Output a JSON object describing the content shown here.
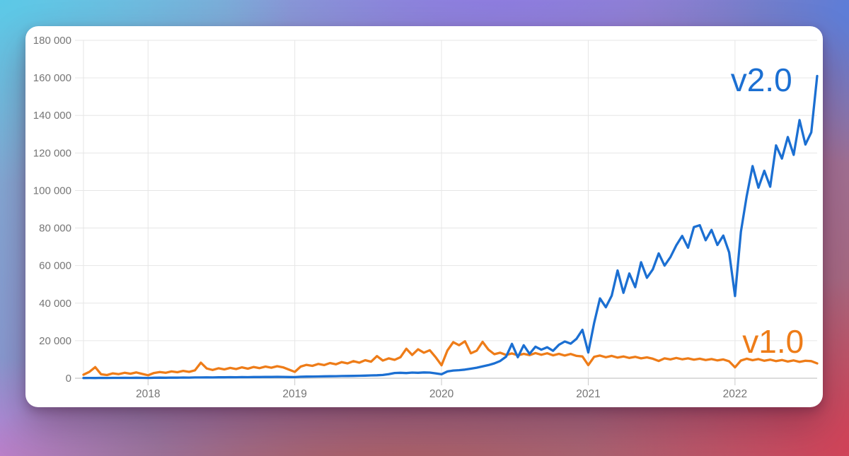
{
  "background": {
    "style": "colorful-gradient",
    "colors": [
      "#5acae8",
      "#8f76e4",
      "#527ee0",
      "#d63e56",
      "#b25246",
      "#d07cd6"
    ]
  },
  "card": {
    "background": "#ffffff"
  },
  "chart_data": {
    "type": "line",
    "title": "",
    "xlabel": "",
    "ylabel": "",
    "grid": true,
    "legend_position": "inline-annotations",
    "xlim": [
      2017.56,
      2022.56
    ],
    "ylim": [
      0,
      180000
    ],
    "x_ticks": [
      2018,
      2019,
      2020,
      2021,
      2022
    ],
    "x_tick_labels": [
      "2018",
      "2019",
      "2020",
      "2021",
      "2022"
    ],
    "y_ticks": [
      0,
      20000,
      40000,
      60000,
      80000,
      100000,
      120000,
      140000,
      160000,
      180000
    ],
    "y_tick_labels": [
      "0",
      "20 000",
      "40 000",
      "60 000",
      "80 000",
      "100 000",
      "120 000",
      "140 000",
      "160 000",
      "180 000"
    ],
    "grid_color": "#e6e6e6",
    "axis_line_color": "#b9b9b9",
    "tick_color": "#c9c9c9",
    "x_start": 2017.56,
    "x_step": 0.04,
    "series": [
      {
        "name": "v1.0",
        "color": "#ee7c18",
        "label_at": {
          "x": 2022.26,
          "y": 19500
        },
        "values": [
          1900,
          3400,
          5900,
          2100,
          1700,
          2600,
          2200,
          2900,
          2400,
          3100,
          2300,
          1600,
          2800,
          3300,
          2900,
          3600,
          3200,
          3900,
          3400,
          4200,
          8300,
          5200,
          4400,
          5300,
          4700,
          5500,
          4900,
          5800,
          5100,
          6000,
          5400,
          6200,
          5600,
          6400,
          5800,
          4600,
          3400,
          6200,
          7100,
          6600,
          7600,
          7000,
          8100,
          7400,
          8600,
          7900,
          9100,
          8300,
          9600,
          8800,
          11800,
          9400,
          10600,
          9800,
          11200,
          15700,
          12400,
          15400,
          13600,
          14900,
          11200,
          6900,
          14800,
          19200,
          17600,
          19700,
          13300,
          14700,
          19400,
          15200,
          12800,
          13600,
          12400,
          13200,
          12200,
          13000,
          12300,
          13400,
          12500,
          13300,
          12200,
          13000,
          12100,
          12900,
          11900,
          11600,
          7000,
          11400,
          12100,
          11200,
          11900,
          11000,
          11600,
          10800,
          11400,
          10600,
          11100,
          10400,
          9200,
          10600,
          10000,
          10800,
          10100,
          10600,
          9900,
          10400,
          9700,
          10200,
          9500,
          10000,
          9000,
          5800,
          9400,
          10400,
          9600,
          10200,
          9300,
          9900,
          9100,
          9700,
          8900,
          9500,
          8700,
          9300,
          9100,
          7900
        ]
      },
      {
        "name": "v2.0",
        "color": "#1b6fd2",
        "label_at": {
          "x": 2022.18,
          "y": 159000
        },
        "values": [
          100,
          150,
          120,
          180,
          150,
          200,
          180,
          220,
          200,
          250,
          180,
          150,
          250,
          300,
          280,
          350,
          320,
          380,
          350,
          420,
          400,
          450,
          430,
          500,
          480,
          550,
          520,
          600,
          580,
          650,
          630,
          700,
          680,
          750,
          720,
          650,
          600,
          800,
          850,
          900,
          950,
          1000,
          1050,
          1100,
          1150,
          1200,
          1250,
          1300,
          1400,
          1500,
          1600,
          1750,
          2200,
          2800,
          2900,
          2750,
          3000,
          2900,
          3100,
          3000,
          2600,
          2100,
          3600,
          4100,
          4300,
          4600,
          5100,
          5600,
          6300,
          7000,
          7900,
          9200,
          11500,
          18300,
          11200,
          17600,
          13000,
          16800,
          15200,
          16500,
          14600,
          17800,
          19600,
          18400,
          21000,
          25800,
          13700,
          29500,
          42500,
          37800,
          44000,
          57400,
          45500,
          55800,
          48500,
          61800,
          53500,
          58000,
          66500,
          60000,
          64500,
          70800,
          75800,
          69500,
          80500,
          81500,
          73500,
          79000,
          71000,
          76000,
          67000,
          43800,
          78000,
          97000,
          113000,
          101500,
          110500,
          102000,
          124000,
          117000,
          128500,
          119000,
          137500,
          124500,
          131000,
          161000
        ]
      }
    ]
  }
}
